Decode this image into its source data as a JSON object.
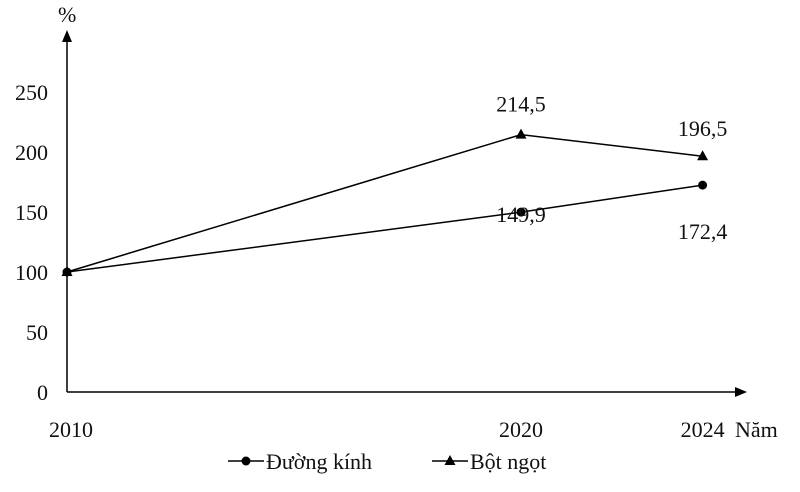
{
  "chart_data": {
    "type": "line",
    "ylabel": "%",
    "xlabel": "Năm",
    "x": [
      2010,
      2020,
      2024
    ],
    "ylim": [
      0,
      250
    ],
    "yticks": [
      0,
      50,
      100,
      150,
      200,
      250
    ],
    "grid": false,
    "legend_position": "bottom",
    "series": [
      {
        "name": "Đường kính",
        "marker": "circle",
        "values": [
          100,
          149.9,
          172.4
        ],
        "labels": [
          "",
          "149,9",
          "172,4"
        ]
      },
      {
        "name": "Bột ngọt",
        "marker": "triangle",
        "values": [
          100,
          214.5,
          196.5
        ],
        "labels": [
          "",
          "214,5",
          "196,5"
        ]
      }
    ],
    "colors": {
      "line": "#000000"
    }
  }
}
